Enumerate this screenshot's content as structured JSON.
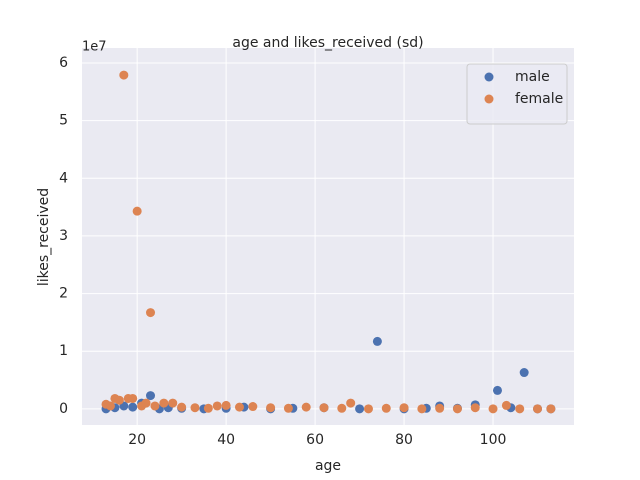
{
  "chart_data": {
    "type": "scatter",
    "title": "age and likes_received (sd)",
    "x_label": "age",
    "y_label": "likes_received",
    "y_offset_label": "1e7",
    "xlim": [
      7.6,
      118.2
    ],
    "ylim": [
      -0.28,
      6.26
    ],
    "xticks": [
      20,
      40,
      60,
      80,
      100
    ],
    "yticks": [
      0,
      1,
      2,
      3,
      4,
      5,
      6
    ],
    "grid": true,
    "legend": "upper right",
    "series": [
      {
        "name": "male",
        "color": "#4c72b0",
        "x": [
          13,
          15,
          17,
          19,
          21,
          23,
          25,
          27,
          30,
          35,
          40,
          44,
          50,
          55,
          62,
          70,
          74,
          80,
          85,
          88,
          92,
          96,
          101,
          104,
          107,
          110,
          113
        ],
        "values": [
          0.0,
          0.02,
          0.05,
          0.03,
          0.1,
          0.23,
          0.0,
          0.02,
          0.01,
          0.0,
          0.01,
          0.03,
          0.0,
          0.01,
          0.02,
          0.0,
          1.17,
          0.0,
          0.01,
          0.05,
          0.01,
          0.07,
          0.32,
          0.02,
          0.63,
          0.0,
          0.0
        ]
      },
      {
        "name": "female",
        "color": "#dd8452",
        "x": [
          13,
          14,
          15,
          16,
          17,
          18,
          19,
          20,
          21,
          22,
          23,
          24,
          26,
          28,
          30,
          33,
          36,
          38,
          40,
          43,
          46,
          50,
          54,
          58,
          62,
          66,
          68,
          72,
          76,
          80,
          84,
          88,
          92,
          96,
          100,
          103,
          106,
          110,
          113
        ],
        "values": [
          0.08,
          0.05,
          0.18,
          0.15,
          5.79,
          0.18,
          0.18,
          3.43,
          0.05,
          0.1,
          1.67,
          0.05,
          0.1,
          0.1,
          0.03,
          0.02,
          0.01,
          0.05,
          0.06,
          0.03,
          0.04,
          0.02,
          0.01,
          0.03,
          0.02,
          0.01,
          0.1,
          0.0,
          0.01,
          0.02,
          0.0,
          0.01,
          0.0,
          0.02,
          0.0,
          0.06,
          0.0,
          0.0,
          0.0
        ]
      }
    ]
  }
}
